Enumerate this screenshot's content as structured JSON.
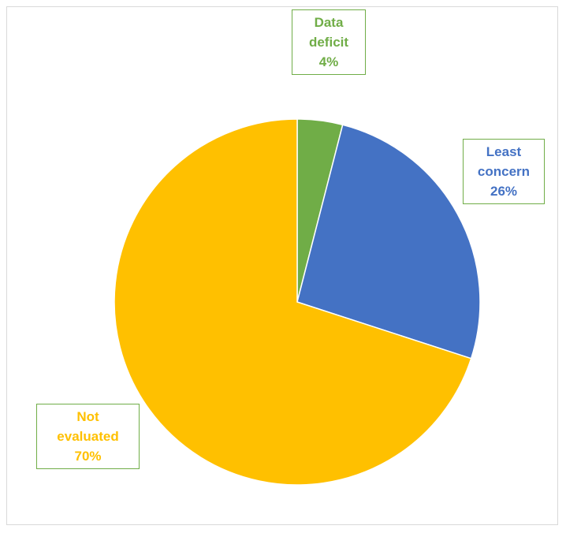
{
  "chart_data": {
    "type": "pie",
    "title": "",
    "start_angle_deg": 0,
    "direction": "clockwise",
    "slices": [
      {
        "id": "data-deficit",
        "label_lines": [
          "Data",
          "deficit"
        ],
        "value": 4,
        "value_label": "4%",
        "color": "#70ad47"
      },
      {
        "id": "least-concern",
        "label_lines": [
          "Least",
          "concern"
        ],
        "value": 26,
        "value_label": "26%",
        "color": "#4472c4"
      },
      {
        "id": "not-evaluated",
        "label_lines": [
          "Not",
          "evaluated"
        ],
        "value": 70,
        "value_label": "70%",
        "color": "#ffc000"
      }
    ],
    "label_border_color": "#70ad47",
    "legend": "none"
  }
}
